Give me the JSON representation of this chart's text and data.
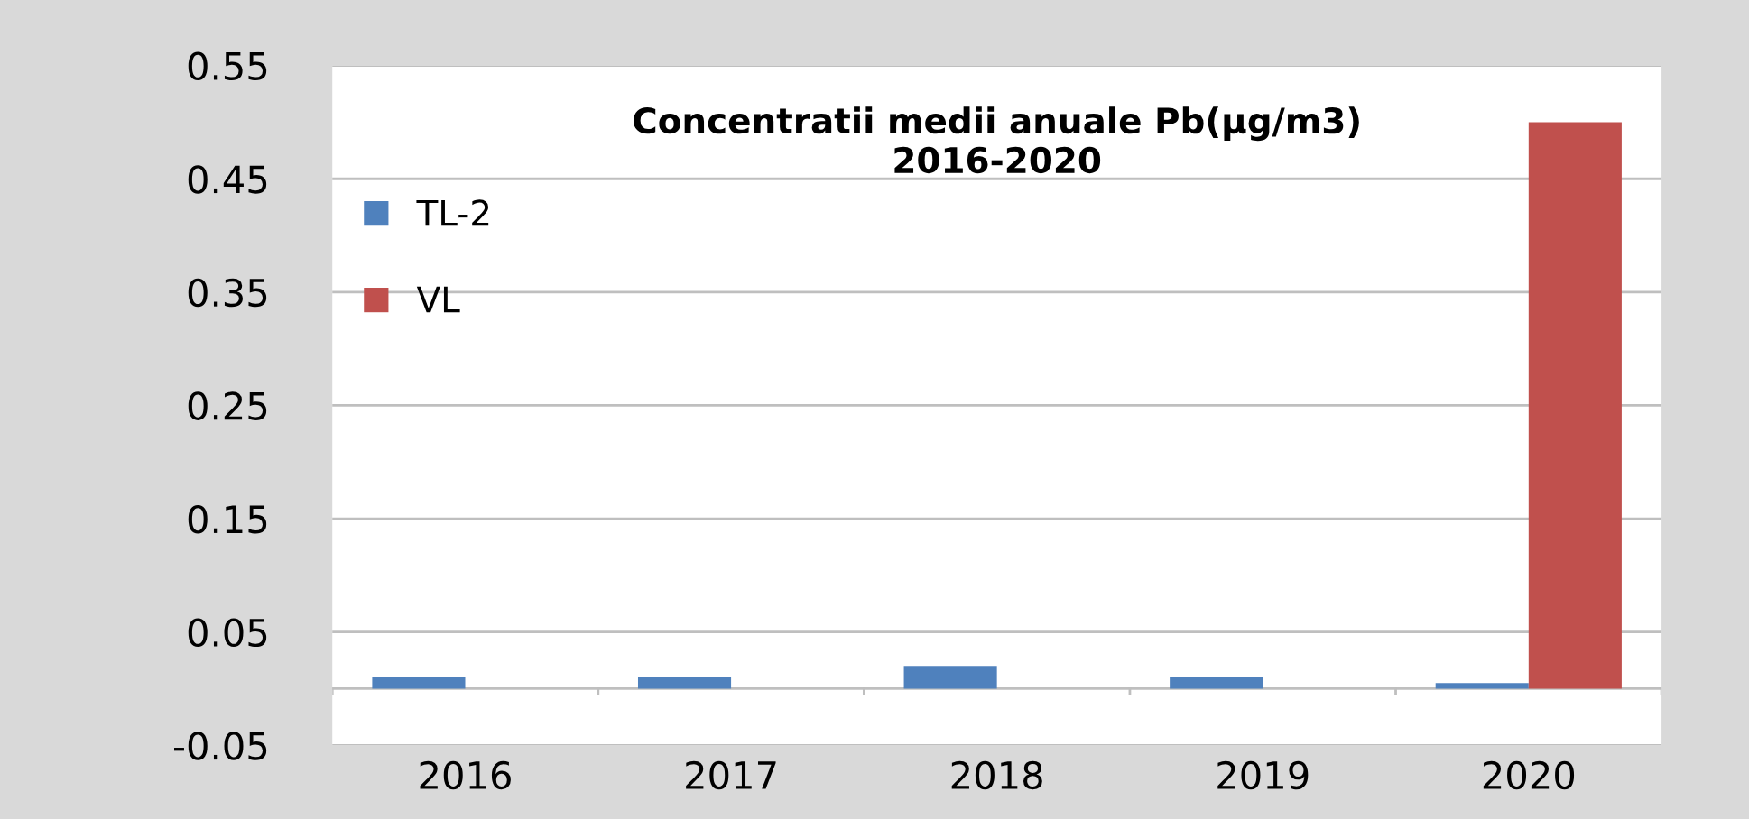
{
  "chart_data": {
    "type": "bar",
    "title": "Concentratii medii anuale Pb(µg/m3)\n2016-2020",
    "categories": [
      "2016",
      "2017",
      "2018",
      "2019",
      "2020"
    ],
    "series": [
      {
        "name": "TL-2",
        "color": "#4f81bd",
        "values": [
          0.01,
          0.01,
          0.02,
          0.01,
          0.005
        ]
      },
      {
        "name": "VL",
        "color": "#c0504d",
        "values": [
          null,
          null,
          null,
          null,
          0.5
        ]
      }
    ],
    "ylim": [
      -0.05,
      0.55
    ],
    "yticks": [
      -0.05,
      0.05,
      0.15,
      0.25,
      0.35,
      0.45,
      0.55
    ],
    "grid": "y",
    "legend": "top left"
  }
}
